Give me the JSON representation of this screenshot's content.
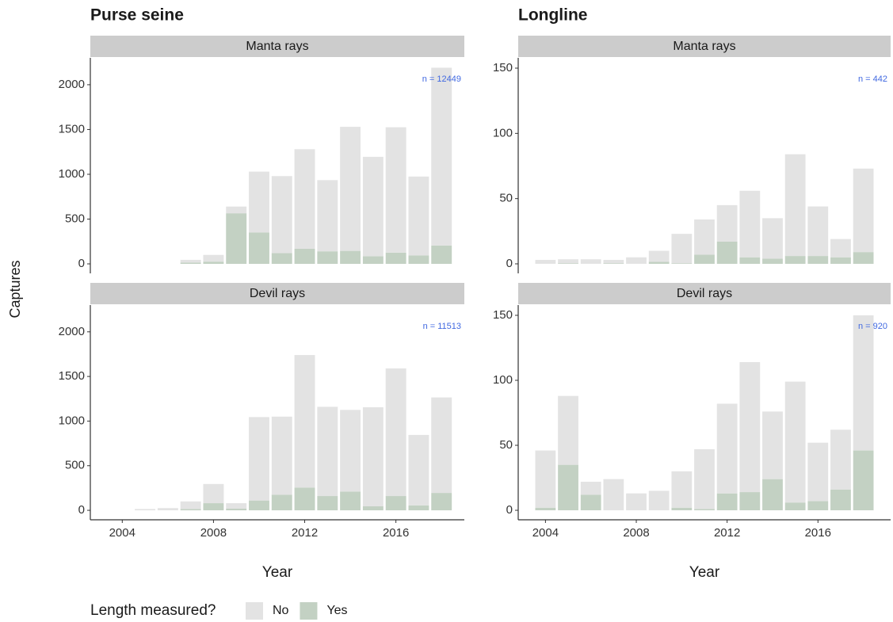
{
  "chart_data": [
    {
      "type": "bar",
      "stacked": true,
      "title": "Purse seine",
      "subtitle": "Manta rays",
      "annotation": "n = 12449",
      "x": [
        2004,
        2005,
        2006,
        2007,
        2008,
        2009,
        2010,
        2011,
        2012,
        2013,
        2014,
        2015,
        2016,
        2017,
        2018
      ],
      "series": [
        {
          "name": "No",
          "color": "#e3e3e3",
          "values": [
            null,
            null,
            null,
            30,
            75,
            75,
            680,
            860,
            1110,
            795,
            1385,
            1110,
            1400,
            880,
            1985
          ]
        },
        {
          "name": "Yes",
          "color": "#c3d1c3",
          "values": [
            null,
            null,
            null,
            15,
            25,
            565,
            350,
            120,
            170,
            140,
            145,
            85,
            125,
            95,
            205
          ]
        }
      ],
      "xlim": [
        2002.6,
        2019.0
      ],
      "ylim": [
        -106,
        2300
      ],
      "yticks": [
        0,
        500,
        1000,
        1500,
        2000
      ]
    },
    {
      "type": "bar",
      "stacked": true,
      "title": "Longline",
      "subtitle": "Manta rays",
      "annotation": "n = 442",
      "x": [
        2004,
        2005,
        2006,
        2007,
        2008,
        2009,
        2010,
        2011,
        2012,
        2013,
        2014,
        2015,
        2016,
        2017,
        2018
      ],
      "series": [
        {
          "name": "No",
          "color": "#e3e3e3",
          "values": [
            3,
            3,
            3.5,
            2.5,
            5,
            8.5,
            22.5,
            27,
            28,
            51,
            31,
            78,
            38,
            14,
            64
          ]
        },
        {
          "name": "Yes",
          "color": "#c3d1c3",
          "values": [
            0,
            0.5,
            0,
            0.5,
            0,
            1.5,
            0.5,
            7,
            17,
            5,
            4,
            6,
            6,
            5,
            9
          ]
        }
      ],
      "xlim": [
        2002.8,
        2019.2
      ],
      "ylim": [
        -7.3,
        157.9
      ],
      "yticks": [
        0,
        50,
        100,
        150
      ]
    },
    {
      "type": "bar",
      "stacked": true,
      "subtitle": "Devil rays",
      "annotation": "n = 11513",
      "x_label": "Year",
      "x": [
        2004,
        2005,
        2006,
        2007,
        2008,
        2009,
        2010,
        2011,
        2012,
        2013,
        2014,
        2015,
        2016,
        2017,
        2018
      ],
      "series": [
        {
          "name": "No",
          "color": "#e3e3e3",
          "values": [
            null,
            15,
            25,
            85,
            215,
            60,
            935,
            875,
            1485,
            1000,
            915,
            1110,
            1430,
            790,
            1070
          ]
        },
        {
          "name": "Yes",
          "color": "#c3d1c3",
          "values": [
            null,
            0,
            0,
            15,
            80,
            20,
            110,
            175,
            255,
            160,
            210,
            45,
            160,
            55,
            195
          ]
        }
      ],
      "xlim": [
        2002.6,
        2019.0
      ],
      "ylim": [
        -106,
        2300
      ],
      "yticks": [
        0,
        500,
        1000,
        1500,
        2000
      ],
      "xticks": [
        2004,
        2008,
        2012,
        2016
      ]
    },
    {
      "type": "bar",
      "stacked": true,
      "subtitle": "Devil rays",
      "annotation": "n = 920",
      "x_label": "Year",
      "x": [
        2004,
        2005,
        2006,
        2007,
        2008,
        2009,
        2010,
        2011,
        2012,
        2013,
        2014,
        2015,
        2016,
        2017,
        2018
      ],
      "series": [
        {
          "name": "No",
          "color": "#e3e3e3",
          "values": [
            44,
            53,
            10,
            24,
            13,
            15,
            28,
            46,
            69,
            100,
            52,
            93,
            45,
            46,
            104
          ]
        },
        {
          "name": "Yes",
          "color": "#c3d1c3",
          "values": [
            2,
            35,
            12,
            0,
            0,
            0,
            2,
            1,
            13,
            14,
            24,
            6,
            7,
            16,
            46
          ]
        }
      ],
      "xlim": [
        2002.8,
        2019.2
      ],
      "ylim": [
        -7.3,
        157.9
      ],
      "yticks": [
        0,
        50,
        100,
        150
      ],
      "xticks": [
        2004,
        2008,
        2012,
        2016
      ]
    }
  ],
  "y_label": "Captures",
  "legend_title": "Length measured?"
}
